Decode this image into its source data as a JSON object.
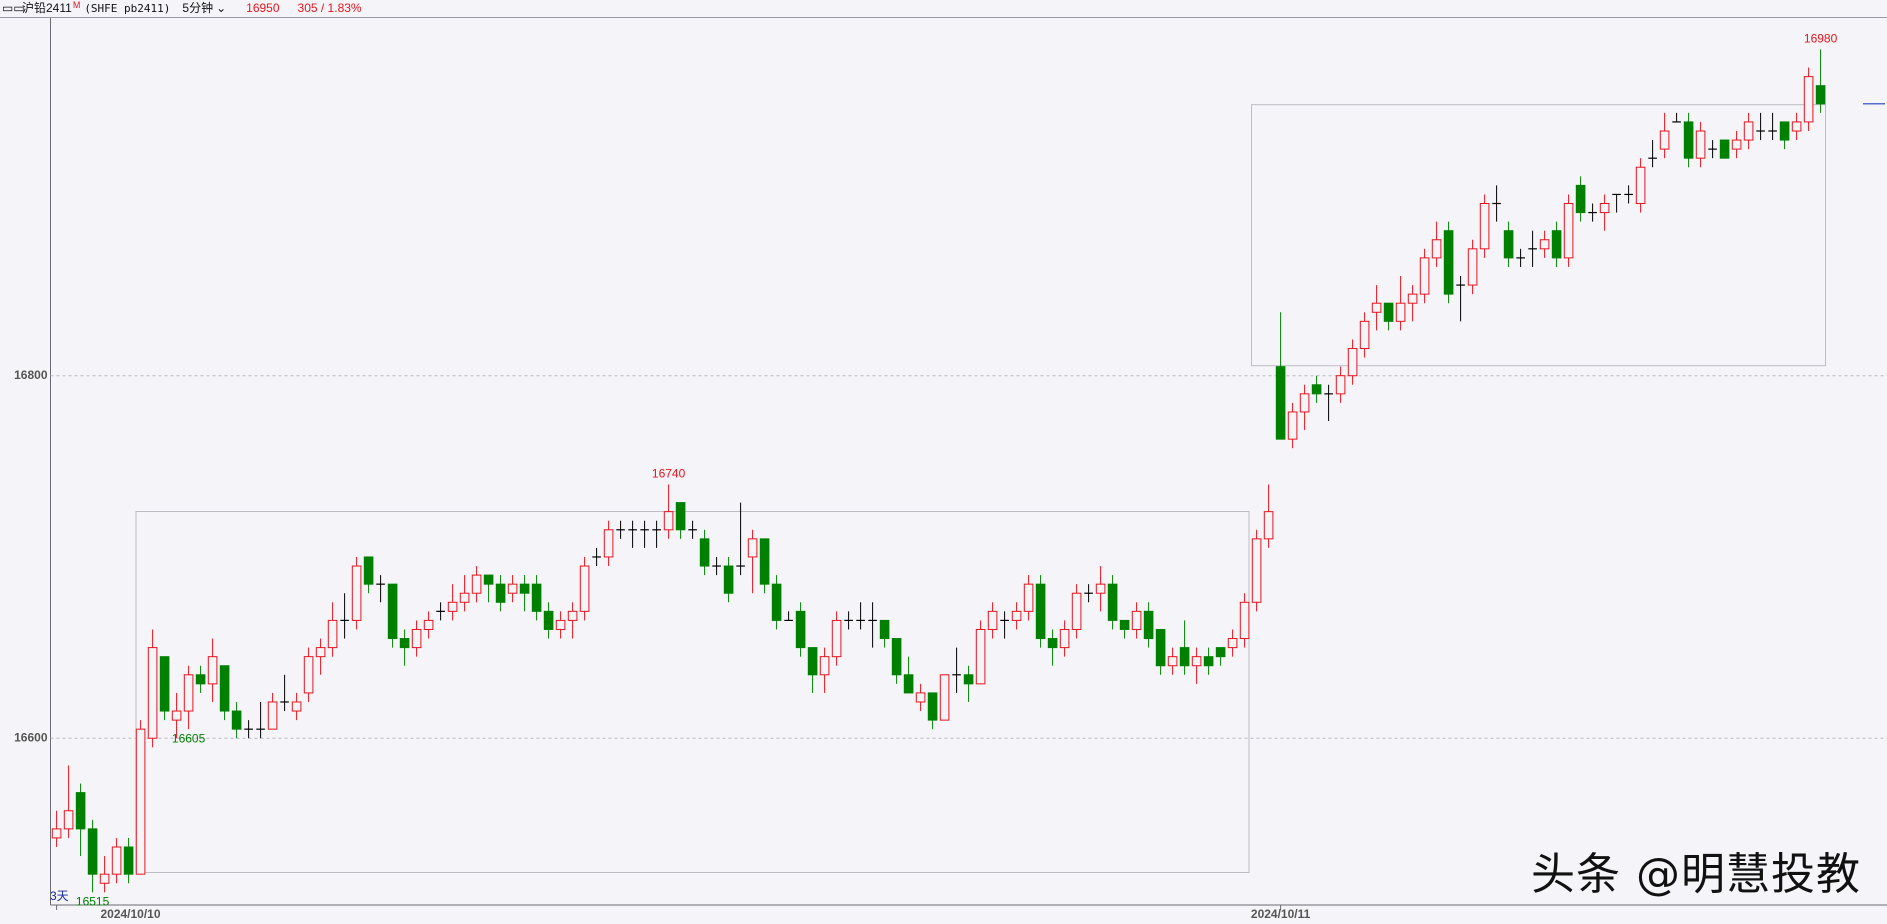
{
  "header": {
    "name": "沪铅2411",
    "badge": "M",
    "symbol": "(SHFE pb2411)",
    "period": "5分钟",
    "change": "305 / 1.83%"
  },
  "watermark": "头条 @明慧投教",
  "chart_data": {
    "type": "candlestick",
    "span_label": "3天",
    "last_price": 16950,
    "ylim": [
      16508,
      16998
    ],
    "yticks": [
      16600,
      16800
    ],
    "grid": true,
    "up_color": "#e8141c",
    "down_color": "#008000",
    "flat_color": "#000000",
    "extreme_labels": [
      16515,
      16605,
      16740,
      16980
    ],
    "categories": [
      "2024/10/10",
      null,
      null,
      null,
      null,
      null,
      null,
      null,
      null,
      null,
      null,
      null,
      null,
      null,
      null,
      null,
      null,
      null,
      null,
      null,
      null,
      null,
      null,
      null,
      null,
      null,
      null,
      null,
      null,
      null,
      null,
      null,
      null,
      null,
      null,
      null,
      null,
      null,
      null,
      null,
      null,
      null,
      null,
      null,
      null,
      null,
      null,
      null,
      null,
      null,
      null,
      null,
      null,
      null,
      null,
      null,
      null,
      null,
      null,
      null,
      null,
      null,
      null,
      null,
      null,
      null,
      null,
      null,
      null,
      null,
      null,
      null,
      null,
      null,
      null,
      null,
      null,
      null,
      null,
      null,
      null,
      null,
      null,
      null,
      null,
      null,
      null,
      null,
      null,
      null,
      null,
      null,
      null,
      null,
      null,
      null,
      null,
      null,
      null,
      null,
      null,
      null,
      "2024/10/11",
      null,
      null,
      null,
      null,
      null,
      null,
      null,
      null,
      null,
      null,
      null,
      null,
      null,
      null,
      null,
      null,
      null,
      null,
      null,
      null,
      null,
      null,
      null,
      null,
      null,
      null,
      null,
      null,
      null,
      null,
      null,
      null,
      null,
      null,
      null,
      null,
      null,
      null,
      null,
      null,
      null,
      null,
      null,
      null,
      null
    ],
    "open": [
      16545,
      16550,
      16570,
      16550,
      16520,
      16525,
      16540,
      16525,
      16600,
      16645,
      16610,
      16615,
      16635,
      16630,
      16640,
      16615,
      16605,
      16605,
      16605,
      16620,
      16615,
      16625,
      16645,
      16650,
      16665,
      16665,
      16700,
      16685,
      16685,
      16655,
      16650,
      16660,
      16670,
      16670,
      16675,
      16680,
      16690,
      16685,
      16680,
      16685,
      16685,
      16670,
      16660,
      16665,
      16670,
      16700,
      16700,
      16715,
      16715,
      16715,
      16715,
      16715,
      16730,
      16715,
      16710,
      16695,
      16695,
      16695,
      16700,
      16710,
      16685,
      16665,
      16670,
      16650,
      16635,
      16645,
      16665,
      16665,
      16665,
      16665,
      16655,
      16635,
      16620,
      16625,
      16610,
      16635,
      16635,
      16630,
      16660,
      16665,
      16665,
      16670,
      16685,
      16655,
      16650,
      16660,
      16680,
      16680,
      16685,
      16665,
      16660,
      16670,
      16660,
      16640,
      16650,
      16640,
      16645,
      16650,
      16650,
      16655,
      16675,
      16710,
      16805,
      16765,
      16780,
      16795,
      16790,
      16790,
      16800,
      16815,
      16835,
      16840,
      16830,
      16840,
      16845,
      16865,
      16880,
      16850,
      16850,
      16870,
      16895,
      16880,
      16865,
      16870,
      16870,
      16880,
      16865,
      16905,
      16890,
      16890,
      16900,
      16900,
      16895,
      16920,
      16925,
      16940,
      16940,
      16920,
      16925,
      16930,
      16925,
      16930,
      16935,
      16935,
      16940,
      16935,
      16940,
      16960
    ],
    "high": [
      16560,
      16585,
      16575,
      16555,
      16535,
      16545,
      16545,
      16610,
      16660,
      16645,
      16625,
      16640,
      16640,
      16655,
      16640,
      16620,
      16610,
      16620,
      16625,
      16635,
      16625,
      16650,
      16655,
      16675,
      16680,
      16700,
      16700,
      16690,
      16685,
      16660,
      16665,
      16670,
      16675,
      16685,
      16690,
      16695,
      16690,
      16690,
      16690,
      16690,
      16690,
      16675,
      16670,
      16675,
      16700,
      16705,
      16720,
      16720,
      16720,
      16720,
      16720,
      16740,
      16730,
      16720,
      16715,
      16700,
      16700,
      16730,
      16715,
      16710,
      16690,
      16670,
      16675,
      16650,
      16650,
      16670,
      16670,
      16675,
      16675,
      16665,
      16655,
      16645,
      16630,
      16625,
      16635,
      16650,
      16640,
      16665,
      16675,
      16670,
      16675,
      16690,
      16690,
      16660,
      16665,
      16685,
      16685,
      16695,
      16690,
      16665,
      16675,
      16675,
      16660,
      16650,
      16665,
      16650,
      16650,
      16650,
      16660,
      16680,
      16715,
      16740,
      16835,
      16785,
      16795,
      16800,
      16795,
      16805,
      16820,
      16835,
      16850,
      16840,
      16855,
      16850,
      16870,
      16885,
      16885,
      16855,
      16875,
      16900,
      16905,
      16885,
      16870,
      16880,
      16880,
      16885,
      16900,
      16910,
      16895,
      16900,
      16900,
      16905,
      16920,
      16930,
      16945,
      16945,
      16945,
      16940,
      16930,
      16930,
      16935,
      16945,
      16945,
      16945,
      16940,
      16945,
      16970,
      16980
    ],
    "low": [
      16540,
      16545,
      16535,
      16515,
      16515,
      16520,
      16520,
      16525,
      16595,
      16610,
      16600,
      16605,
      16625,
      16620,
      16610,
      16600,
      16600,
      16600,
      16605,
      16615,
      16610,
      16620,
      16635,
      16645,
      16655,
      16660,
      16680,
      16675,
      16650,
      16640,
      16645,
      16655,
      16665,
      16665,
      16670,
      16675,
      16675,
      16670,
      16675,
      16670,
      16665,
      16655,
      16655,
      16655,
      16665,
      16695,
      16695,
      16710,
      16705,
      16705,
      16705,
      16710,
      16710,
      16710,
      16690,
      16690,
      16675,
      16690,
      16680,
      16680,
      16660,
      16665,
      16645,
      16625,
      16625,
      16640,
      16660,
      16660,
      16650,
      16650,
      16630,
      16625,
      16615,
      16605,
      16610,
      16625,
      16620,
      16630,
      16655,
      16655,
      16660,
      16665,
      16650,
      16640,
      16645,
      16655,
      16675,
      16670,
      16660,
      16655,
      16655,
      16650,
      16635,
      16635,
      16635,
      16630,
      16635,
      16640,
      16645,
      16650,
      16670,
      16705,
      16765,
      16760,
      16770,
      16785,
      16775,
      16785,
      16795,
      16810,
      16825,
      16825,
      16825,
      16830,
      16840,
      16860,
      16840,
      16830,
      16845,
      16865,
      16885,
      16860,
      16860,
      16860,
      16865,
      16860,
      16860,
      16885,
      16885,
      16880,
      16890,
      16895,
      16890,
      16915,
      16920,
      16940,
      16915,
      16915,
      16920,
      16920,
      16920,
      16925,
      16930,
      16930,
      16925,
      16930,
      16935,
      16945
    ],
    "close": [
      16550,
      16560,
      16550,
      16525,
      16525,
      16540,
      16525,
      16605,
      16650,
      16615,
      16615,
      16635,
      16630,
      16645,
      16615,
      16605,
      16605,
      16605,
      16620,
      16620,
      16620,
      16645,
      16650,
      16665,
      16665,
      16695,
      16685,
      16685,
      16655,
      16650,
      16660,
      16665,
      16670,
      16675,
      16680,
      16690,
      16685,
      16675,
      16685,
      16680,
      16670,
      16660,
      16665,
      16670,
      16695,
      16700,
      16715,
      16715,
      16715,
      16715,
      16715,
      16725,
      16715,
      16715,
      16695,
      16695,
      16680,
      16695,
      16710,
      16685,
      16665,
      16665,
      16650,
      16635,
      16645,
      16665,
      16665,
      16665,
      16665,
      16655,
      16635,
      16625,
      16625,
      16610,
      16635,
      16635,
      16630,
      16660,
      16670,
      16665,
      16670,
      16685,
      16655,
      16650,
      16660,
      16680,
      16680,
      16685,
      16665,
      16660,
      16670,
      16655,
      16640,
      16645,
      16640,
      16645,
      16640,
      16645,
      16655,
      16675,
      16710,
      16725,
      16765,
      16780,
      16790,
      16790,
      16790,
      16800,
      16815,
      16830,
      16840,
      16830,
      16840,
      16845,
      16865,
      16875,
      16845,
      16850,
      16870,
      16895,
      16895,
      16865,
      16865,
      16870,
      16875,
      16865,
      16895,
      16890,
      16890,
      16895,
      16900,
      16900,
      16915,
      16920,
      16935,
      16940,
      16920,
      16935,
      16925,
      16920,
      16930,
      16940,
      16935,
      16935,
      16930,
      16940,
      16965,
      16950
    ]
  }
}
